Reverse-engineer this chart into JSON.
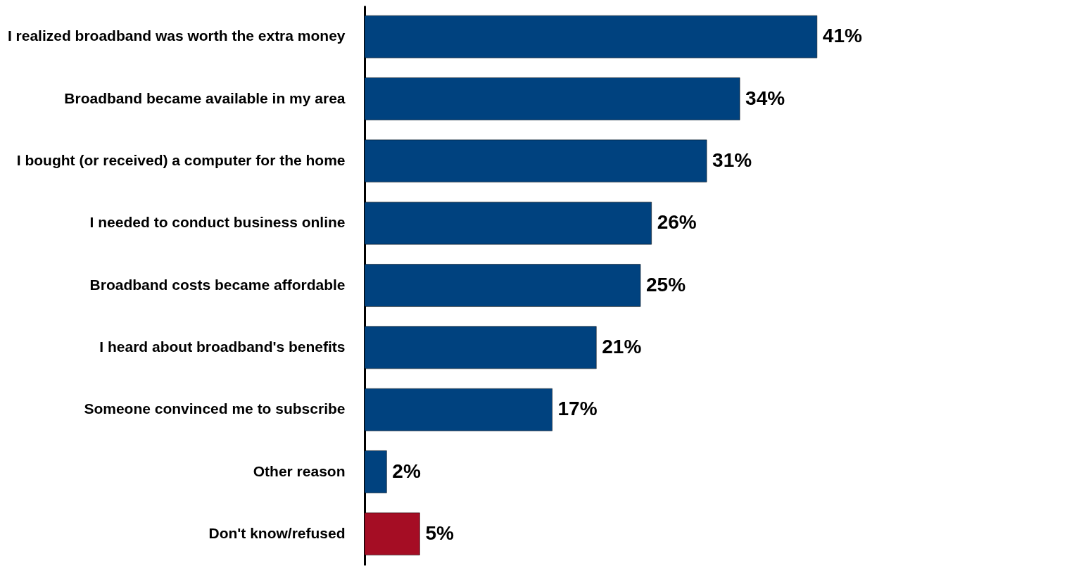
{
  "chart_data": {
    "type": "bar",
    "orientation": "horizontal",
    "categories": [
      "I realized broadband was worth the extra money",
      "Broadband became available in my area",
      "I bought (or received) a computer for the home",
      "I needed to conduct business online",
      "Broadband costs became affordable",
      "I heard about broadband's benefits",
      "Someone convinced me to subscribe",
      "Other reason",
      "Don't know/refused"
    ],
    "values": [
      41,
      34,
      31,
      26,
      25,
      21,
      17,
      2,
      5
    ],
    "colors": [
      "#00427f",
      "#00427f",
      "#00427f",
      "#00427f",
      "#00427f",
      "#00427f",
      "#00427f",
      "#00427f",
      "#a50d24"
    ],
    "value_labels": [
      "41%",
      "34%",
      "31%",
      "26%",
      "25%",
      "21%",
      "17%",
      "2%",
      "5%"
    ],
    "grid": false,
    "legend": false
  }
}
